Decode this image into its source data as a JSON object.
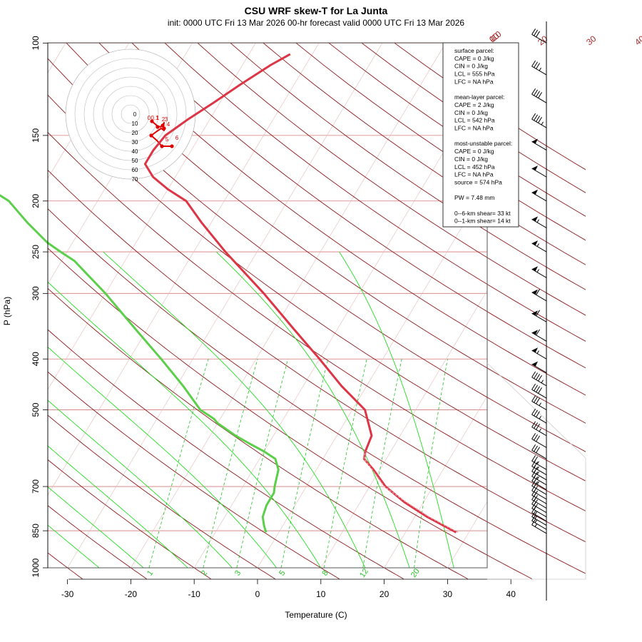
{
  "title": "CSU WRF skew-T for La Junta",
  "subtitle": "init: 0000 UTC Fri 13 Mar 2026     00-hr forecast valid 0000 UTC Fri 13 Mar 2026",
  "xlabel": "Temperature (C)",
  "ylabel": "P (hPa)",
  "colors": {
    "temperature": "#dc3545",
    "dewpoint": "#5ccf4a",
    "isotherms": "#a52a2a",
    "isobars": "#d47a7a",
    "mixing_ratio": "#22c322",
    "moist_adiabats": "#22dd22",
    "dry_adiabats": "#8b1a1a",
    "hodograph_trace": "#e00000"
  },
  "chart_data": {
    "type": "line",
    "pressure_ticks": [
      "100",
      "150",
      "200",
      "250",
      "300",
      "400",
      "500",
      "700",
      "850",
      "1000"
    ],
    "pressure_values": [
      100,
      150,
      200,
      250,
      300,
      400,
      500,
      700,
      850,
      1000
    ],
    "temperature_ticks": [
      "-30",
      "-20",
      "-10",
      "0",
      "10",
      "20",
      "30",
      "40"
    ],
    "temperature_values": [
      -30,
      -20,
      -10,
      0,
      10,
      20,
      30,
      40
    ],
    "xlim": [
      -33,
      42
    ],
    "ylim": [
      1000,
      100
    ],
    "yscale": "log",
    "isotherm_labels": [
      "-10",
      "0",
      "10",
      "20",
      "30",
      "40",
      "50"
    ],
    "isotherm_label_values": [
      -10,
      0,
      10,
      20,
      30,
      40,
      50
    ],
    "mixing_ratio_labels": [
      "1",
      "2",
      "3",
      "5",
      "8",
      "12",
      "20"
    ],
    "mixing_ratio_values": [
      1,
      2,
      3,
      5,
      8,
      12,
      20
    ],
    "series": [
      {
        "p": [
          856,
          800,
          750,
          700,
          650,
          620,
          600,
          560,
          500,
          450,
          400,
          350,
          300,
          250,
          220,
          200,
          190,
          180,
          170,
          160,
          150,
          140,
          130,
          120,
          110,
          105
        ],
        "t": [
          28,
          22,
          17,
          12.5,
          9,
          6.5,
          6,
          5.5,
          2,
          -4,
          -10,
          -17,
          -25,
          -35,
          -41.5,
          -46,
          -50,
          -53.5,
          -56,
          -56,
          -55.5,
          -53.5,
          -51,
          -48.5,
          -45.5,
          -43.5
        ]
      },
      {
        "p": [
          856,
          830,
          800,
          760,
          720,
          700,
          650,
          620,
          600,
          580,
          560,
          530,
          520,
          500,
          450,
          400,
          350,
          300,
          260,
          250,
          240,
          220,
          200,
          190
        ],
        "t": [
          -2,
          -3,
          -4,
          -4.5,
          -4.5,
          -5,
          -6,
          -7.5,
          -10,
          -13,
          -16,
          -20,
          -21,
          -24,
          -29,
          -35,
          -42,
          -50,
          -58,
          -61,
          -64,
          -69,
          -74,
          -78
        ]
      }
    ],
    "parcel": {
      "p": [
        856,
        800,
        750,
        700,
        650,
        620,
        600
      ],
      "t": [
        28.3,
        22.3,
        17.3,
        12.3,
        8.8,
        6.5,
        6.0
      ]
    },
    "wind_barbs": {
      "p": [
        860,
        845,
        830,
        815,
        800,
        785,
        770,
        755,
        740,
        725,
        710,
        695,
        680,
        665,
        650,
        620,
        590,
        560,
        530,
        500,
        475,
        450,
        425,
        400,
        370,
        340,
        310,
        280,
        250,
        225,
        200,
        180,
        160,
        145,
        130,
        115,
        100
      ],
      "speed_kt": [
        15,
        15,
        18,
        18,
        20,
        20,
        20,
        22,
        22,
        22,
        25,
        25,
        25,
        25,
        28,
        30,
        32,
        35,
        35,
        38,
        40,
        45,
        50,
        55,
        60,
        60,
        60,
        55,
        55,
        55,
        50,
        50,
        50,
        45,
        40,
        35,
        30
      ]
    },
    "hodograph": {
      "ring_labels": [
        "0",
        "10",
        "20",
        "30",
        "40",
        "50",
        "60",
        "70"
      ],
      "points": [
        {
          "label": "0",
          "u": -6,
          "v": -10
        },
        {
          "label": "0.1",
          "u": -4,
          "v": -10
        },
        {
          "label": "1",
          "u": 1,
          "v": -10
        },
        {
          "label": "2",
          "u": 4,
          "v": -10
        },
        {
          "label": "3",
          "u": 5,
          "v": -12
        },
        {
          "label": "4",
          "u": 4,
          "v": -15
        },
        {
          "label": "5",
          "u": 5,
          "v": -17
        },
        {
          "label": "6",
          "u": 6,
          "v": -18
        }
      ],
      "trace": [
        {
          "u": -4,
          "v": -9
        },
        {
          "u": 1,
          "v": -13
        },
        {
          "u": 4,
          "v": -12
        },
        {
          "u": 6,
          "v": -16
        },
        {
          "u": 5,
          "v": -14
        },
        {
          "u": -2,
          "v": -17
        },
        {
          "u": -4,
          "v": -23
        },
        {
          "u": 2,
          "v": -30
        },
        {
          "u": 3,
          "v": -30
        },
        {
          "u": 7,
          "v": -30
        },
        {
          "u": 7,
          "v": -28
        }
      ]
    }
  },
  "info_box": [
    "surface parcel:",
    "CAPE = 0 J/kg",
    "CIN = 0 J/kg",
    "LCL = 555 hPa",
    "LFC = NA hPa",
    "",
    "mean-layer parcel:",
    "CAPE = 2 J/kg",
    "CIN = 0 J/kg",
    "LCL = 542 hPa",
    "LFC = NA hPa",
    "",
    "most-unstable parcel:",
    "CAPE = 0 J/kg",
    "CIN = 0 J/kg",
    "LCL = 452 hPa",
    "LFC = NA hPa",
    "source = 574 hPa",
    "",
    "PW =  7.48 mm",
    "",
    "0--6-km shear= 33 kt",
    "0--1-km shear= 14 kt"
  ]
}
